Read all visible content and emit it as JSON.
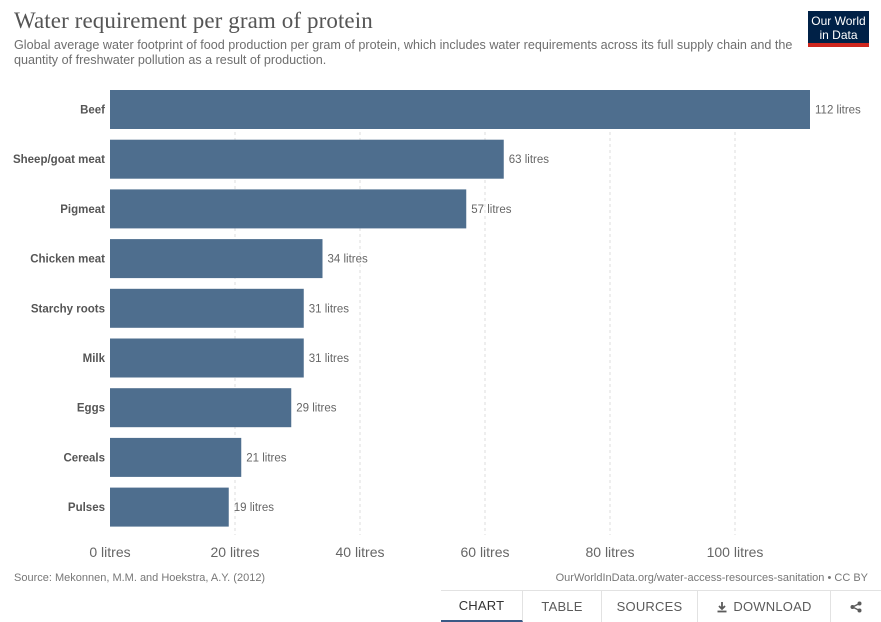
{
  "header": {
    "title": "Water requirement per gram of protein",
    "subtitle": "Global average water footprint of food production per gram of protein, which includes water requirements across its full supply chain and the quantity of freshwater pollution as a result of production."
  },
  "logo": {
    "line1": "Our World",
    "line2": "in Data"
  },
  "colors": {
    "bar": "#4e6e8e",
    "logo_bg": "#002147",
    "logo_accent": "#ce261e",
    "active_tab": "#3a5a86"
  },
  "chart_data": {
    "type": "bar",
    "orientation": "horizontal",
    "categories": [
      "Beef",
      "Sheep/goat meat",
      "Pigmeat",
      "Chicken meat",
      "Starchy roots",
      "Milk",
      "Eggs",
      "Cereals",
      "Pulses"
    ],
    "values": [
      112,
      63,
      57,
      34,
      31,
      31,
      29,
      21,
      19
    ],
    "value_labels": [
      "112 litres",
      "63 litres",
      "57 litres",
      "34 litres",
      "31 litres",
      "31 litres",
      "29 litres",
      "21 litres",
      "19 litres"
    ],
    "xticks": [
      0,
      20,
      40,
      60,
      80,
      100
    ],
    "xtick_labels": [
      "0 litres",
      "20 litres",
      "40 litres",
      "60 litres",
      "80 litres",
      "100 litres"
    ],
    "xlim": [
      0,
      112
    ],
    "grid": "vertical dashed",
    "legend": "none"
  },
  "footer": {
    "source": "Source: Mekonnen, M.M. and Hoekstra, A.Y. (2012)",
    "url_license": "OurWorldInData.org/water-access-resources-sanitation • CC BY"
  },
  "tabs": {
    "chart": "CHART",
    "table": "TABLE",
    "sources": "SOURCES",
    "download": "DOWNLOAD",
    "download_icon": "download-icon",
    "share_icon": "share-icon"
  }
}
